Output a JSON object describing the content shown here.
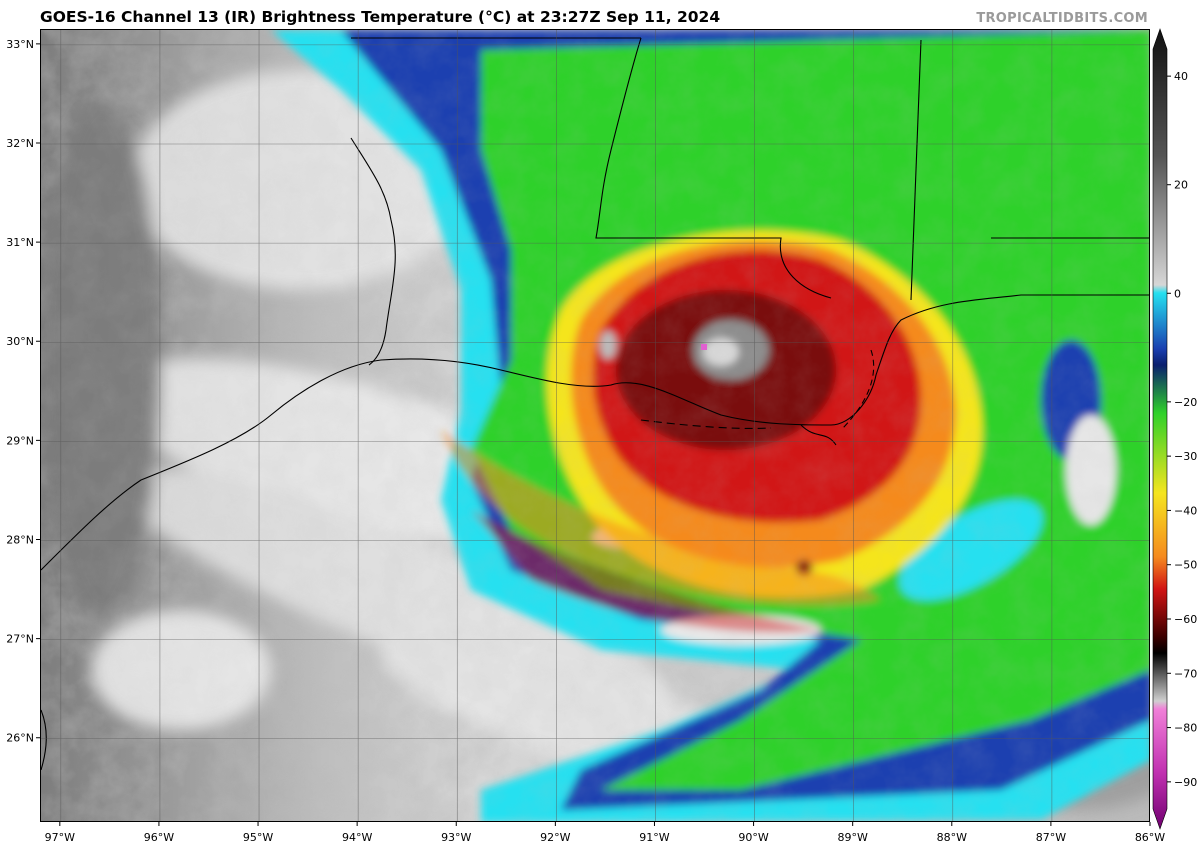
{
  "header": {
    "title": "GOES-16 Channel 13 (IR) Brightness Temperature (°C) at 23:27Z Sep 11, 2024",
    "credit": "TROPICALTIDBITS.COM"
  },
  "map": {
    "lon_range": [
      -97.2,
      -86.0
    ],
    "lat_range": [
      25.15,
      33.15
    ],
    "lon_ticks": [
      "97°W",
      "96°W",
      "95°W",
      "94°W",
      "93°W",
      "92°W",
      "91°W",
      "90°W",
      "89°W",
      "88°W",
      "87°W",
      "86°W"
    ],
    "lat_ticks": [
      "26°N",
      "27°N",
      "28°N",
      "29°N",
      "30°N",
      "31°N",
      "32°N",
      "33°N"
    ],
    "gridlines": true,
    "storm_center": {
      "lon": -90.5,
      "lat": 29.9
    }
  },
  "colorbar": {
    "ticks": [
      "40",
      "20",
      "0",
      "−20",
      "−30",
      "−40",
      "−50",
      "−60",
      "−70",
      "−80",
      "−90"
    ],
    "tick_values": [
      40,
      20,
      0,
      -20,
      -30,
      -40,
      -50,
      -60,
      -70,
      -80,
      -90
    ],
    "range": [
      -95,
      45
    ],
    "extend": "both"
  },
  "palette": {
    "warm_gray": "#8a8a8a",
    "cloud_white": "#e6e6e6",
    "cyan": "#25e0f0",
    "blue": "#1a3fb0",
    "navy": "#0a1f6e",
    "green": "#2fd12a",
    "yellow": "#f5e51f",
    "orange": "#f58a1f",
    "red": "#d11414",
    "dark_red": "#7a0a0a",
    "core_gray": "#8c8c8c",
    "magenta": "#e060d0"
  }
}
